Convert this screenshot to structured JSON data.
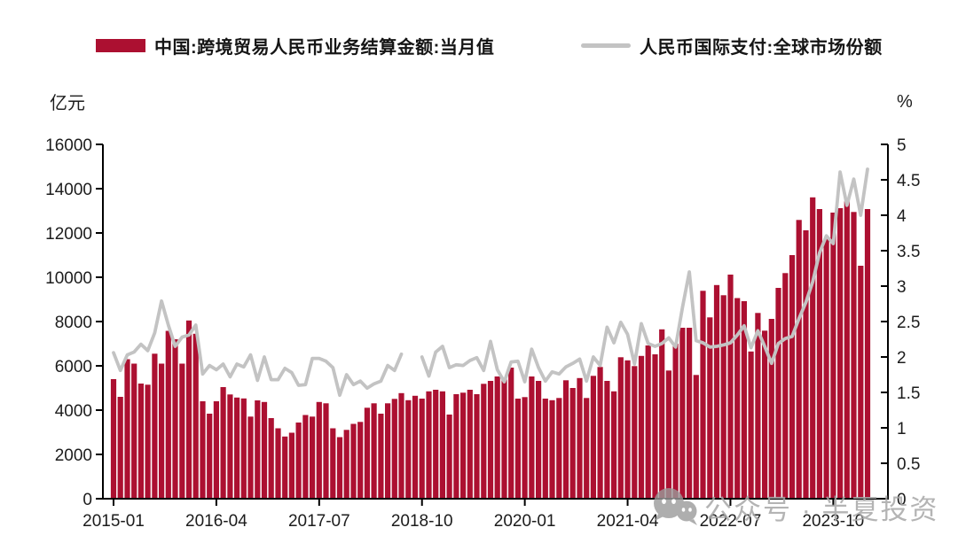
{
  "legend": {
    "bar_label": "中国:跨境贸易人民币业务结算金额:当月值",
    "line_label": "人民币国际支付:全球市场份额"
  },
  "axes": {
    "left_unit": "亿元",
    "right_unit": "%",
    "left_tick_labels": [
      "0",
      "2000",
      "4000",
      "6000",
      "8000",
      "10000",
      "12000",
      "14000",
      "16000"
    ],
    "right_tick_labels": [
      "0",
      "0.5",
      "1",
      "1.5",
      "2",
      "2.5",
      "3",
      "3.5",
      "4",
      "4.5",
      "5"
    ]
  },
  "watermark": {
    "icon": "wechat-icon",
    "text": "公众号 · 半夏投资"
  },
  "colors": {
    "bar": "#AC1031",
    "line": "#C3C3C3",
    "text": "#1C1C1C",
    "axis": "#000000",
    "watermark": "#A8A8A8"
  },
  "chart_data": {
    "type": "combo",
    "legend_position": "top",
    "grid": false,
    "left_axis": {
      "unit": "亿元",
      "min": 0,
      "max": 16000,
      "tick_step": 2000
    },
    "right_axis": {
      "unit": "%",
      "min": 0,
      "max": 5,
      "tick_step": 0.5
    },
    "x_tick_labels": [
      "2015-01",
      "2016-04",
      "2017-07",
      "2018-10",
      "2020-01",
      "2021-04",
      "2022-07",
      "2023-10"
    ],
    "x_tick_every_months": 15,
    "x": [
      "2015-01",
      "2015-02",
      "2015-03",
      "2015-04",
      "2015-05",
      "2015-06",
      "2015-07",
      "2015-08",
      "2015-09",
      "2015-10",
      "2015-11",
      "2015-12",
      "2016-01",
      "2016-02",
      "2016-03",
      "2016-04",
      "2016-05",
      "2016-06",
      "2016-07",
      "2016-08",
      "2016-09",
      "2016-10",
      "2016-11",
      "2016-12",
      "2017-01",
      "2017-02",
      "2017-03",
      "2017-04",
      "2017-05",
      "2017-06",
      "2017-07",
      "2017-08",
      "2017-09",
      "2017-10",
      "2017-11",
      "2017-12",
      "2018-01",
      "2018-02",
      "2018-03",
      "2018-04",
      "2018-05",
      "2018-06",
      "2018-07",
      "2018-08",
      "2018-09",
      "2018-10",
      "2018-11",
      "2018-12",
      "2019-01",
      "2019-02",
      "2019-03",
      "2019-04",
      "2019-05",
      "2019-06",
      "2019-07",
      "2019-08",
      "2019-09",
      "2019-10",
      "2019-11",
      "2019-12",
      "2020-01",
      "2020-02",
      "2020-03",
      "2020-04",
      "2020-05",
      "2020-06",
      "2020-07",
      "2020-08",
      "2020-09",
      "2020-10",
      "2020-11",
      "2020-12",
      "2021-01",
      "2021-02",
      "2021-03",
      "2021-04",
      "2021-05",
      "2021-06",
      "2021-07",
      "2021-08",
      "2021-09",
      "2021-10",
      "2021-11",
      "2021-12",
      "2022-01",
      "2022-02",
      "2022-03",
      "2022-04",
      "2022-05",
      "2022-06",
      "2022-07",
      "2022-08",
      "2022-09",
      "2022-10",
      "2022-11",
      "2022-12",
      "2023-01",
      "2023-02",
      "2023-03",
      "2023-04",
      "2023-05",
      "2023-06",
      "2023-07",
      "2023-08",
      "2023-09",
      "2023-10",
      "2023-11",
      "2023-12",
      "2024-01",
      "2024-02",
      "2024-03"
    ],
    "series": [
      {
        "name": "中国:跨境贸易人民币业务结算金额:当月值",
        "type": "bar",
        "axis": "left",
        "unit": "亿元",
        "color": "#AC1031",
        "values": [
          5400,
          4600,
          6300,
          6100,
          5200,
          5150,
          6550,
          6100,
          7580,
          7200,
          6100,
          8050,
          7450,
          4400,
          3840,
          4400,
          5040,
          4710,
          4570,
          4530,
          3710,
          4440,
          4370,
          3640,
          3180,
          2810,
          2980,
          3440,
          3780,
          3710,
          4370,
          4310,
          3180,
          2780,
          3110,
          3380,
          3470,
          4110,
          4310,
          3840,
          4310,
          4510,
          4770,
          4450,
          4650,
          4520,
          4850,
          4920,
          4850,
          3800,
          4720,
          4790,
          4920,
          4720,
          5190,
          5320,
          5520,
          5390,
          5920,
          4520,
          4590,
          5520,
          5320,
          4520,
          4450,
          4550,
          5350,
          5000,
          5450,
          4550,
          5550,
          5950,
          5320,
          4850,
          6390,
          6250,
          5990,
          6450,
          6920,
          6520,
          7650,
          5790,
          7000,
          7720,
          7720,
          5590,
          9390,
          8190,
          9650,
          9190,
          10120,
          9060,
          8920,
          6650,
          8390,
          7590,
          8120,
          9520,
          10190,
          11000,
          12590,
          12120,
          13610,
          13080,
          11720,
          12920,
          13120,
          13430,
          12950,
          10520,
          13080
        ]
      },
      {
        "name": "人民币国际支付:全球市场份额",
        "type": "line",
        "axis": "right",
        "unit": "%",
        "color": "#C3C3C3",
        "values": [
          2.06,
          1.81,
          2.03,
          2.07,
          2.18,
          2.09,
          2.34,
          2.79,
          2.45,
          2.15,
          2.28,
          2.31,
          2.45,
          1.76,
          1.88,
          1.82,
          1.9,
          1.72,
          1.9,
          1.86,
          2.03,
          1.67,
          2.0,
          1.68,
          1.68,
          1.84,
          1.78,
          1.6,
          1.61,
          1.98,
          1.98,
          1.94,
          1.85,
          1.46,
          1.75,
          1.61,
          1.66,
          1.56,
          1.62,
          1.66,
          1.88,
          1.81,
          2.04,
          null,
          null,
          2.0,
          1.73,
          2.07,
          2.15,
          1.85,
          1.89,
          1.88,
          1.95,
          1.99,
          1.81,
          2.22,
          1.82,
          1.65,
          1.93,
          1.94,
          1.65,
          2.11,
          1.85,
          1.66,
          1.79,
          1.76,
          1.86,
          1.91,
          1.97,
          1.66,
          2.0,
          1.88,
          2.42,
          2.2,
          2.49,
          2.32,
          1.9,
          2.47,
          2.19,
          2.15,
          2.19,
          2.27,
          2.14,
          2.7,
          3.2,
          2.23,
          2.2,
          2.14,
          2.15,
          2.17,
          2.2,
          2.31,
          2.44,
          2.13,
          2.37,
          2.15,
          1.91,
          2.19,
          2.26,
          2.29,
          2.54,
          2.77,
          3.06,
          3.47,
          3.71,
          3.6,
          4.61,
          4.14,
          4.51,
          4.0,
          4.65
        ]
      }
    ]
  }
}
